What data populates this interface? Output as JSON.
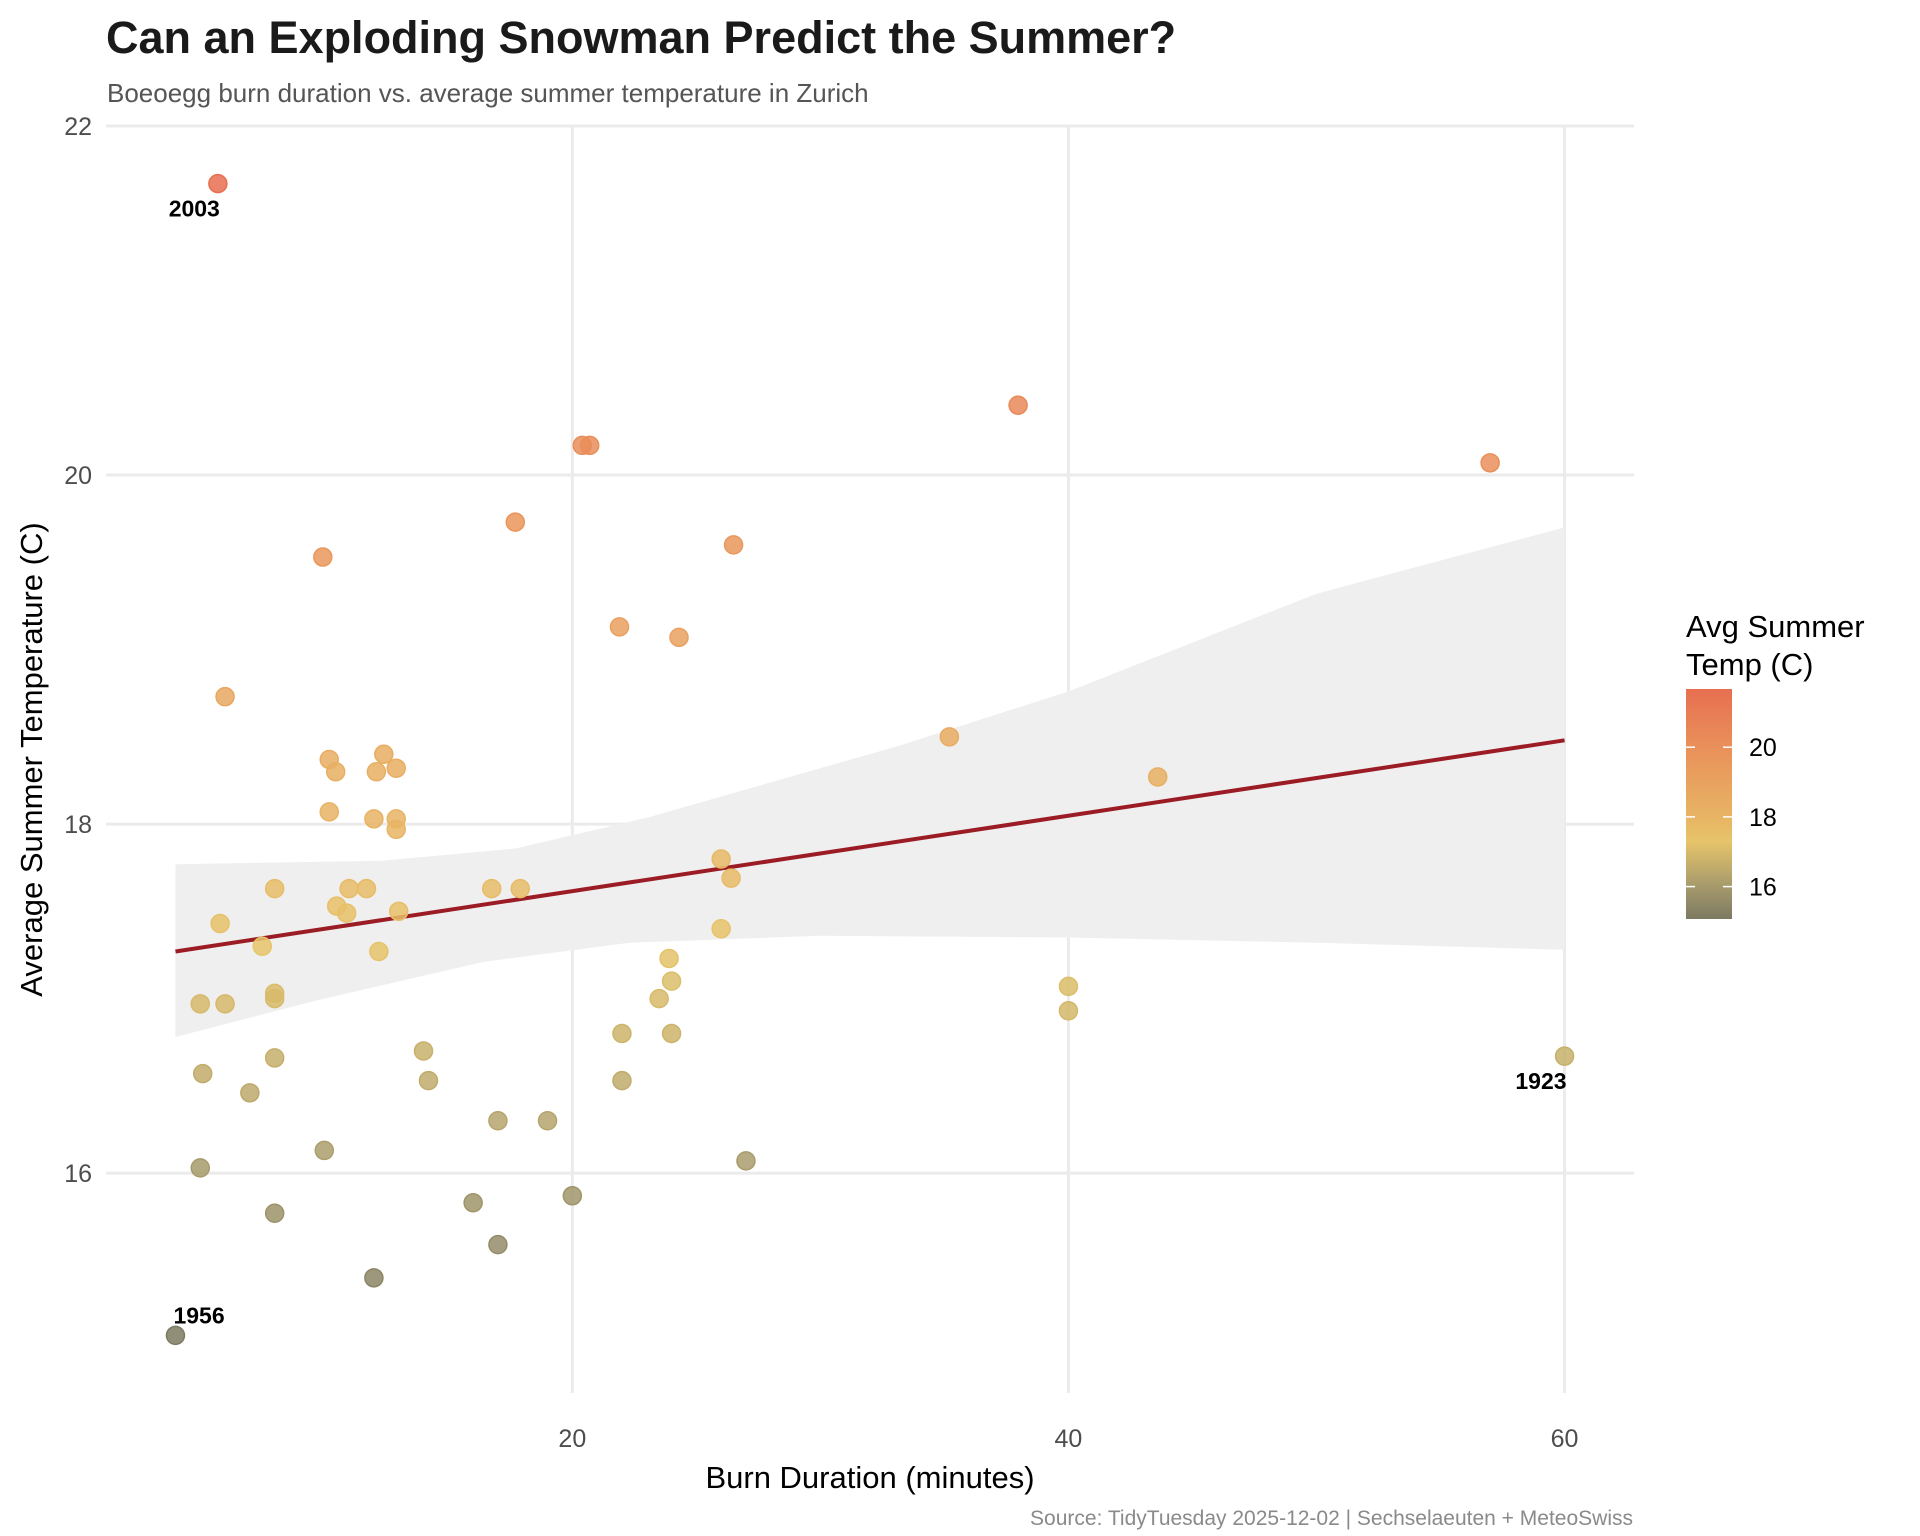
{
  "header": {
    "title": "Can an Exploding Snowman Predict the Summer?",
    "subtitle": "Boeoegg burn duration vs. average summer temperature in Zurich"
  },
  "caption": "Source: TidyTuesday 2025-12-02 | Sechselaeuten + MeteoSwiss",
  "chart_data": {
    "type": "scatter",
    "title": "Can an Exploding Snowman Predict the Summer?",
    "subtitle": "Boeoegg burn duration vs. average summer temperature in Zurich",
    "xlabel": "Burn Duration (minutes)",
    "ylabel": "Average Summer Temperature (C)",
    "xlim": [
      1.2,
      62.8
    ],
    "ylim": [
      14.74,
      22.0
    ],
    "xticks": [
      20,
      40,
      60
    ],
    "yticks": [
      16,
      18,
      20,
      22
    ],
    "grid": true,
    "legend": {
      "title_lines": [
        "Avg Summer",
        "Temp (C)"
      ],
      "type": "colorbar",
      "placement": "right",
      "range": [
        15.07,
        21.67
      ],
      "ticks": [
        16,
        18,
        20
      ],
      "colors": [
        {
          "value": 15.07,
          "color": "#7d7a62"
        },
        {
          "value": 16.0,
          "color": "#a69a6c"
        },
        {
          "value": 17.3,
          "color": "#e6c46a"
        },
        {
          "value": 18.0,
          "color": "#e8b464"
        },
        {
          "value": 20.0,
          "color": "#e9905a"
        },
        {
          "value": 21.67,
          "color": "#e76f50"
        }
      ]
    },
    "trend_line": {
      "method": "linear",
      "color": "#9b1c24",
      "points": [
        {
          "x": 4.0,
          "y": 17.27
        },
        {
          "x": 60.0,
          "y": 18.48
        }
      ]
    },
    "confidence_band": {
      "color": "#efefef",
      "upper": [
        {
          "x": 4.0,
          "y": 17.77
        },
        {
          "x": 12.3,
          "y": 17.79
        },
        {
          "x": 17.7,
          "y": 17.86
        },
        {
          "x": 23.1,
          "y": 18.04
        },
        {
          "x": 33.2,
          "y": 18.45
        },
        {
          "x": 40.0,
          "y": 18.76
        },
        {
          "x": 50.0,
          "y": 19.32
        },
        {
          "x": 60.0,
          "y": 19.7
        }
      ],
      "lower": [
        {
          "x": 4.0,
          "y": 16.78
        },
        {
          "x": 9.7,
          "y": 16.99
        },
        {
          "x": 16.4,
          "y": 17.21
        },
        {
          "x": 22.3,
          "y": 17.32
        },
        {
          "x": 30.0,
          "y": 17.36
        },
        {
          "x": 40.0,
          "y": 17.35
        },
        {
          "x": 50.0,
          "y": 17.32
        },
        {
          "x": 60.0,
          "y": 17.28
        }
      ]
    },
    "annotations": [
      {
        "label": "2003",
        "x": 5.71,
        "y": 21.67,
        "position": "below-left"
      },
      {
        "label": "1956",
        "x": 4.0,
        "y": 15.07,
        "position": "above-right"
      },
      {
        "label": "1923",
        "x": 60.0,
        "y": 16.67,
        "position": "below-left"
      }
    ],
    "points": [
      {
        "x": 5.71,
        "y": 21.67
      },
      {
        "x": 6.0,
        "y": 18.73
      },
      {
        "x": 10.2,
        "y": 18.37
      },
      {
        "x": 10.46,
        "y": 18.3
      },
      {
        "x": 12.4,
        "y": 18.4
      },
      {
        "x": 12.9,
        "y": 18.32
      },
      {
        "x": 12.1,
        "y": 18.3
      },
      {
        "x": 10.2,
        "y": 18.07
      },
      {
        "x": 12.0,
        "y": 18.03
      },
      {
        "x": 12.9,
        "y": 18.03
      },
      {
        "x": 12.9,
        "y": 17.97
      },
      {
        "x": 8.0,
        "y": 17.63
      },
      {
        "x": 11.0,
        "y": 17.63
      },
      {
        "x": 11.7,
        "y": 17.63
      },
      {
        "x": 16.75,
        "y": 17.63
      },
      {
        "x": 17.9,
        "y": 17.63
      },
      {
        "x": 5.8,
        "y": 17.43
      },
      {
        "x": 10.5,
        "y": 17.53
      },
      {
        "x": 10.9,
        "y": 17.49
      },
      {
        "x": 13.0,
        "y": 17.5
      },
      {
        "x": 7.5,
        "y": 17.3
      },
      {
        "x": 12.2,
        "y": 17.27
      },
      {
        "x": 5.0,
        "y": 16.97
      },
      {
        "x": 6.0,
        "y": 16.97
      },
      {
        "x": 8.0,
        "y": 17.03
      },
      {
        "x": 8.0,
        "y": 17.0
      },
      {
        "x": 22.0,
        "y": 16.8
      },
      {
        "x": 5.1,
        "y": 16.57
      },
      {
        "x": 8.0,
        "y": 16.66
      },
      {
        "x": 7.0,
        "y": 16.46
      },
      {
        "x": 14.0,
        "y": 16.7
      },
      {
        "x": 14.2,
        "y": 16.53
      },
      {
        "x": 22.0,
        "y": 16.53
      },
      {
        "x": 17.0,
        "y": 16.3
      },
      {
        "x": 19.0,
        "y": 16.3
      },
      {
        "x": 5.0,
        "y": 16.03
      },
      {
        "x": 10.0,
        "y": 16.13
      },
      {
        "x": 8.0,
        "y": 15.77
      },
      {
        "x": 16.0,
        "y": 15.83
      },
      {
        "x": 20.0,
        "y": 15.87
      },
      {
        "x": 17.0,
        "y": 15.59
      },
      {
        "x": 12.0,
        "y": 15.4
      },
      {
        "x": 4.0,
        "y": 15.07
      },
      {
        "x": 27.0,
        "y": 16.07
      },
      {
        "x": 20.4,
        "y": 20.17
      },
      {
        "x": 20.7,
        "y": 20.17
      },
      {
        "x": 9.94,
        "y": 19.53
      },
      {
        "x": 17.7,
        "y": 19.73
      },
      {
        "x": 21.9,
        "y": 19.13
      },
      {
        "x": 24.3,
        "y": 19.07
      },
      {
        "x": 26.5,
        "y": 19.6
      },
      {
        "x": 37.97,
        "y": 20.4
      },
      {
        "x": 57.0,
        "y": 20.07
      },
      {
        "x": 35.2,
        "y": 18.5
      },
      {
        "x": 43.6,
        "y": 18.27
      },
      {
        "x": 60.0,
        "y": 16.67
      },
      {
        "x": 26.0,
        "y": 17.8
      },
      {
        "x": 26.4,
        "y": 17.69
      },
      {
        "x": 26.0,
        "y": 17.4
      },
      {
        "x": 23.9,
        "y": 17.23
      },
      {
        "x": 24.0,
        "y": 17.1
      },
      {
        "x": 23.5,
        "y": 17.0
      },
      {
        "x": 24.0,
        "y": 16.8
      },
      {
        "x": 40.0,
        "y": 17.07
      },
      {
        "x": 40.0,
        "y": 16.93
      }
    ]
  }
}
